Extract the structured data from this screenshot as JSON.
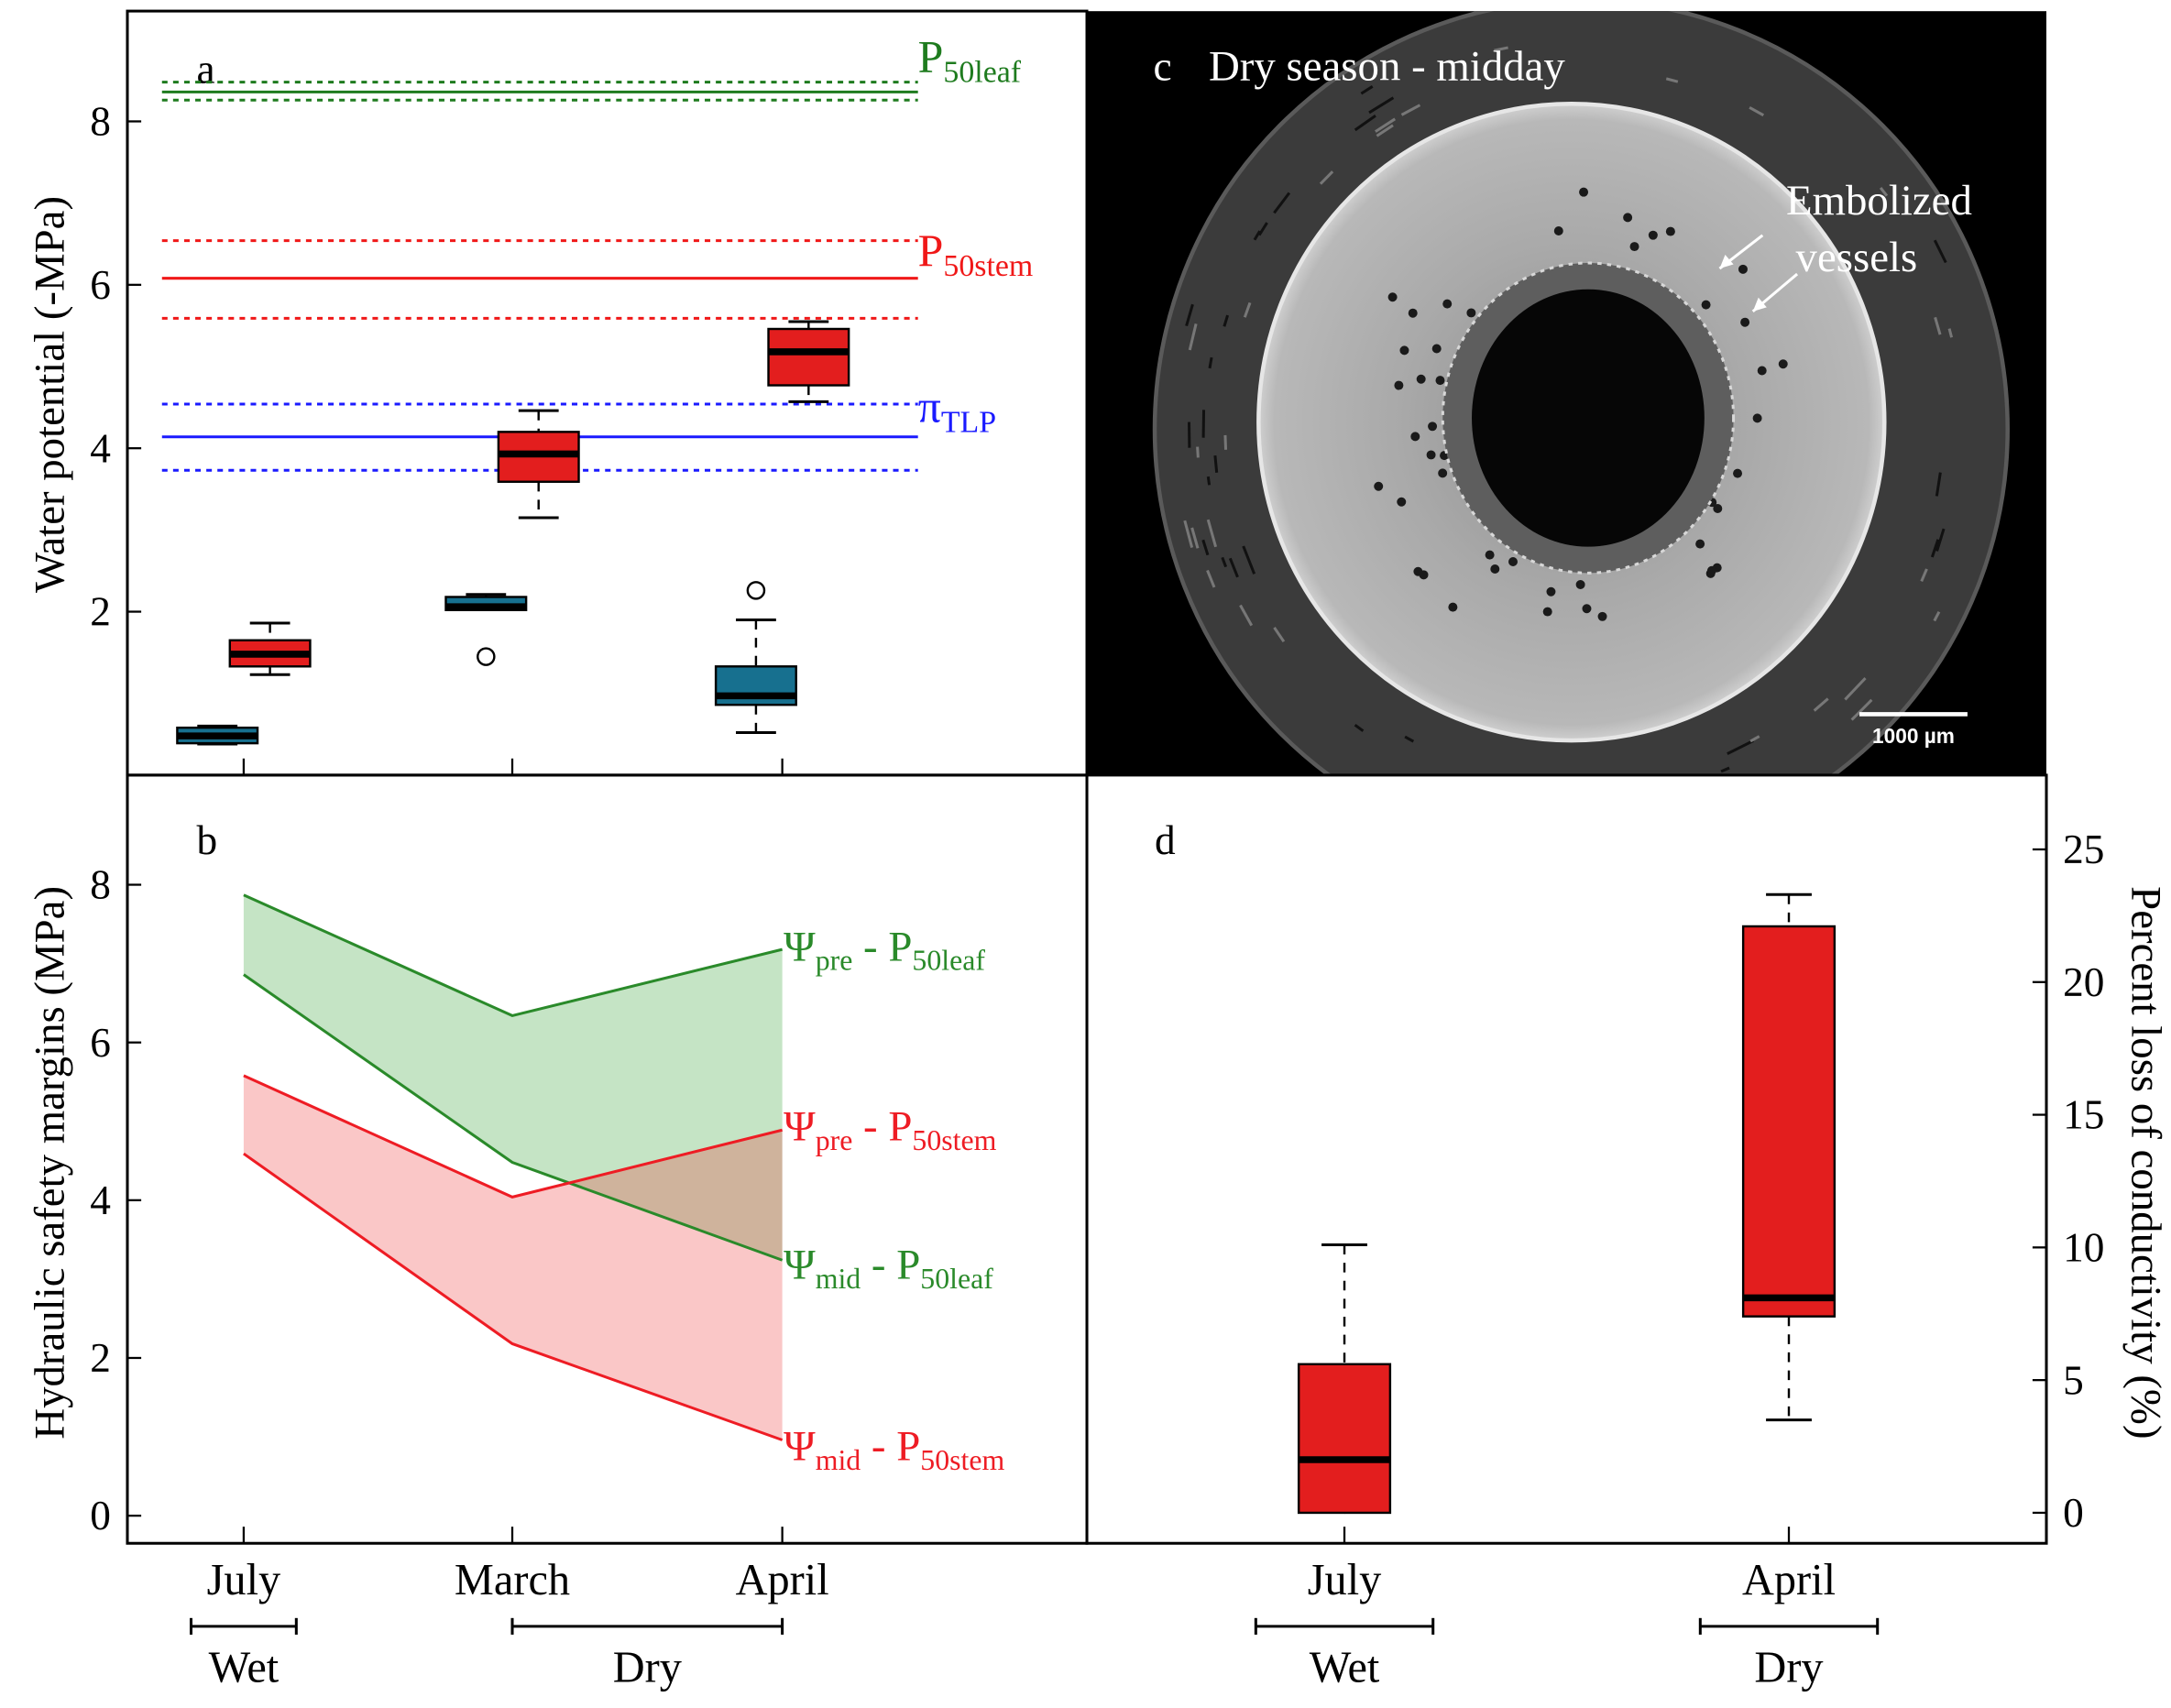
{
  "chart_data": [
    {
      "panel": "a",
      "type": "box",
      "panel_label": "a",
      "ylabel": "Water potential (-MPa)",
      "categories": [
        "July",
        "March",
        "April"
      ],
      "ylim": [
        0,
        9.35
      ],
      "yticks": [
        2,
        4,
        6,
        8
      ],
      "grid": false,
      "series": [
        {
          "color": "#17708f",
          "boxes": [
            {
              "category": "July",
              "lo": 0.38,
              "q1": 0.39,
              "median": 0.48,
              "q3": 0.58,
              "hi": 0.6,
              "outliers": []
            },
            {
              "category": "March",
              "lo": 2.02,
              "q1": 2.02,
              "median": 2.06,
              "q3": 2.18,
              "hi": 2.21,
              "outliers": [
                1.45
              ]
            },
            {
              "category": "April",
              "lo": 0.52,
              "q1": 0.86,
              "median": 0.97,
              "q3": 1.33,
              "hi": 1.9,
              "outliers": [
                2.26
              ]
            }
          ]
        },
        {
          "color": "#e31e1e",
          "boxes": [
            {
              "category": "July",
              "lo": 1.23,
              "q1": 1.33,
              "median": 1.48,
              "q3": 1.65,
              "hi": 1.86,
              "outliers": []
            },
            {
              "category": "March",
              "lo": 3.15,
              "q1": 3.59,
              "median": 3.93,
              "q3": 4.2,
              "hi": 4.46,
              "outliers": []
            },
            {
              "category": "April",
              "lo": 4.57,
              "q1": 4.77,
              "median": 5.18,
              "q3": 5.46,
              "hi": 5.55,
              "outliers": []
            }
          ]
        }
      ],
      "reference_lines": [
        {
          "label": [
            {
              "t": "P"
            },
            {
              "t": "50leaf",
              "sub": true
            }
          ],
          "value": 8.36,
          "lower": 8.26,
          "upper": 8.48,
          "color": "#1e7b1e"
        },
        {
          "label": [
            {
              "t": "P"
            },
            {
              "t": "50stem",
              "sub": true
            }
          ],
          "value": 6.08,
          "lower": 5.59,
          "upper": 6.54,
          "color": "#f01818"
        },
        {
          "label": [
            {
              "t": "π"
            },
            {
              "t": "TLP",
              "sub": true
            }
          ],
          "value": 4.14,
          "lower": 3.73,
          "upper": 4.54,
          "color": "#1a1aff"
        }
      ]
    },
    {
      "panel": "b",
      "type": "area",
      "panel_label": "b",
      "ylabel": "Hydraulic safety margins (MPa)",
      "categories": [
        "July",
        "March",
        "April"
      ],
      "ylim": [
        -0.35,
        9.39
      ],
      "yticks": [
        0,
        2,
        4,
        6,
        8
      ],
      "grid": false,
      "series": [
        {
          "label": [
            {
              "t": "Ψ"
            },
            {
              "t": "pre",
              "sub": true
            },
            {
              "t": " - P"
            },
            {
              "t": "50leaf",
              "sub": true
            }
          ],
          "values": [
            7.87,
            6.34,
            7.18
          ],
          "color": "#2a8a2a"
        },
        {
          "label": [
            {
              "t": "Ψ"
            },
            {
              "t": "mid",
              "sub": true
            },
            {
              "t": " - P"
            },
            {
              "t": "50leaf",
              "sub": true
            }
          ],
          "values": [
            6.86,
            4.48,
            3.24
          ],
          "color": "#2a8a2a"
        },
        {
          "label": [
            {
              "t": "Ψ"
            },
            {
              "t": "pre",
              "sub": true
            },
            {
              "t": " - P"
            },
            {
              "t": "50stem",
              "sub": true
            }
          ],
          "values": [
            5.58,
            4.04,
            4.89
          ],
          "color": "#ee1c24"
        },
        {
          "label": [
            {
              "t": "Ψ"
            },
            {
              "t": "mid",
              "sub": true
            },
            {
              "t": " - P"
            },
            {
              "t": "50stem",
              "sub": true
            }
          ],
          "values": [
            4.59,
            2.18,
            0.96
          ],
          "color": "#ee1c24"
        }
      ],
      "bands": [
        {
          "between": [
            0,
            1
          ],
          "color": "#2a9a2a"
        },
        {
          "between": [
            2,
            3
          ],
          "color": "#ee3030"
        }
      ],
      "season_groups": [
        {
          "label": "Wet",
          "categories": [
            "July"
          ]
        },
        {
          "label": "Dry",
          "categories": [
            "March",
            "April"
          ]
        }
      ]
    },
    {
      "panel": "c",
      "type": "image",
      "panel_label": "c",
      "title": "Dry season - midday",
      "annotation": [
        "Embolized",
        "vessels"
      ],
      "scale_bar": "1000 µm"
    },
    {
      "panel": "d",
      "type": "box",
      "panel_label": "d",
      "ylabel": "Percent loss of conductivity (%)",
      "categories": [
        "July",
        "April"
      ],
      "ylim": [
        -1.15,
        27.8
      ],
      "yticks": [
        0,
        5,
        10,
        15,
        20,
        25
      ],
      "yaxis_side": "right",
      "grid": false,
      "series": [
        {
          "color": "#e31e1e",
          "boxes": [
            {
              "category": "July",
              "lo": 0,
              "q1": 0,
              "median": 2.0,
              "q3": 5.6,
              "hi": 10.1,
              "outliers": []
            },
            {
              "category": "April",
              "lo": 3.5,
              "q1": 7.4,
              "median": 8.1,
              "q3": 22.1,
              "hi": 23.3,
              "outliers": []
            }
          ]
        }
      ],
      "season_groups": [
        {
          "label": "Wet",
          "categories": [
            "July"
          ]
        },
        {
          "label": "Dry",
          "categories": [
            "April"
          ]
        }
      ]
    }
  ]
}
